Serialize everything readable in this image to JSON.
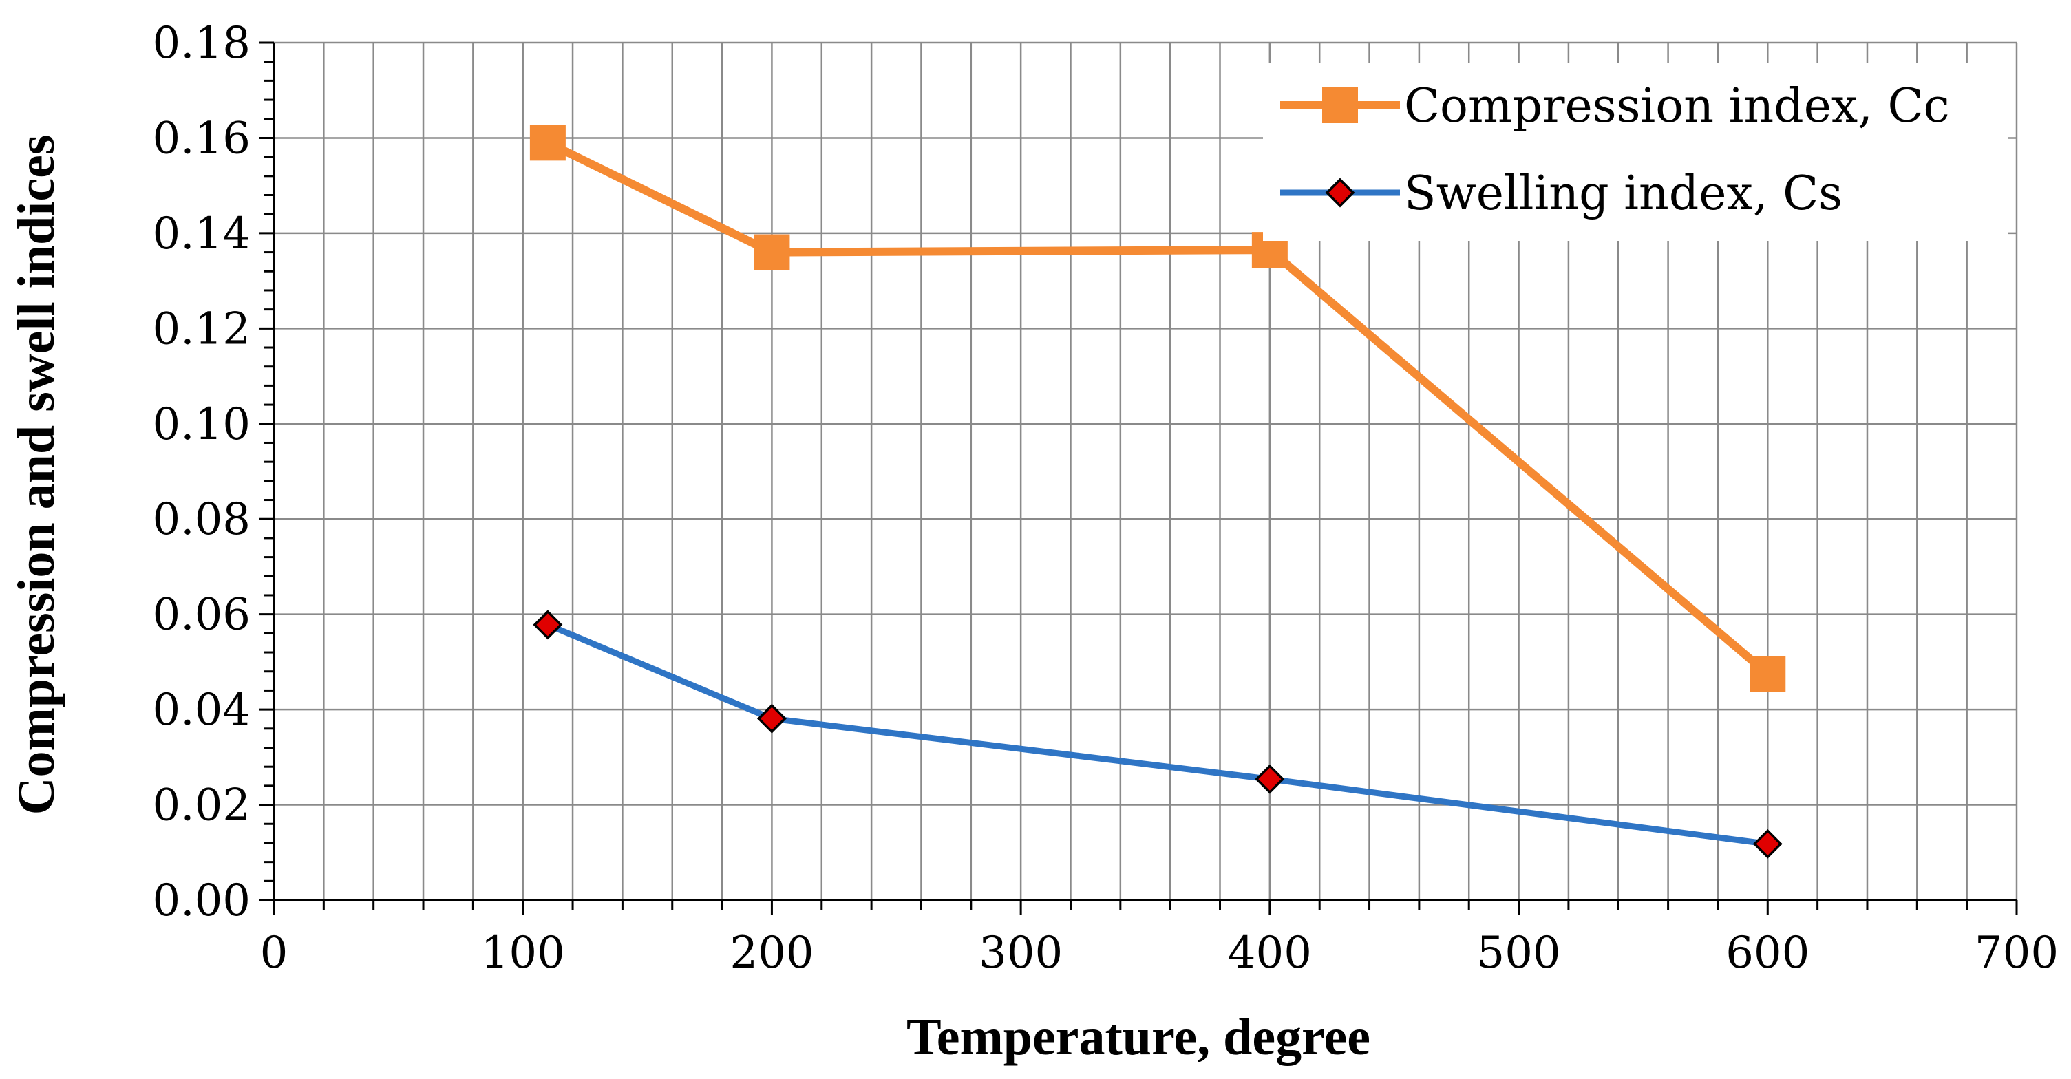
{
  "chart_data": {
    "type": "line",
    "xlabel": "Temperature, degree",
    "ylabel": "Compression and swell indices",
    "xlim": [
      0,
      700
    ],
    "ylim": [
      0,
      0.18
    ],
    "x_ticks": [
      "0",
      "100",
      "200",
      "300",
      "400",
      "500",
      "600",
      "700"
    ],
    "y_ticks": [
      "0.00",
      "0.02",
      "0.04",
      "0.06",
      "0.08",
      "0.10",
      "0.12",
      "0.14",
      "0.16",
      "0.18"
    ],
    "grid": true,
    "legend_position": "top-right",
    "series": [
      {
        "name": "Compression index, Cc",
        "color": "#f58a33",
        "marker": "square",
        "x": [
          110,
          200,
          400,
          600
        ],
        "y": [
          0.159,
          0.136,
          0.1365,
          0.0475
        ]
      },
      {
        "name": "Swelling index, Cs",
        "color": "#2f75c5",
        "marker": "diamond",
        "marker_fill": "#e00000",
        "x": [
          110,
          200,
          400,
          600
        ],
        "y": [
          0.0578,
          0.0381,
          0.0254,
          0.0118
        ]
      }
    ]
  }
}
